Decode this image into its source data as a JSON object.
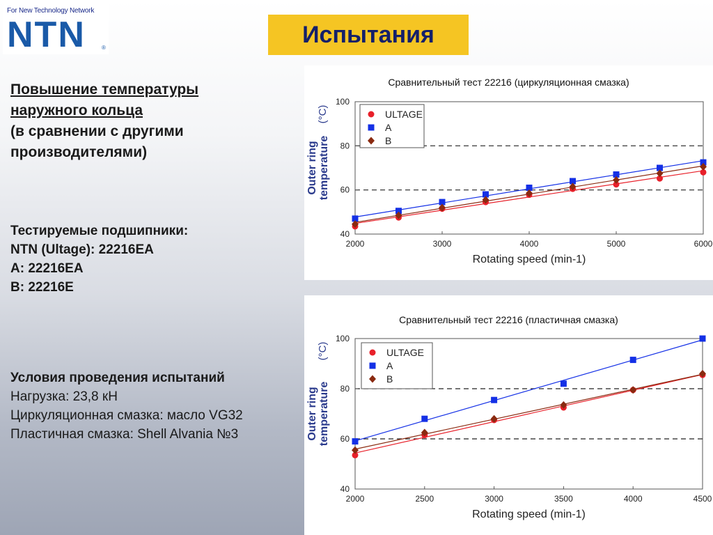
{
  "logo": {
    "tagline": "For New Technology Network",
    "text": "NTN",
    "reg": "®"
  },
  "title": "Испытания",
  "left": {
    "heading_line1": "Повышение температуры",
    "heading_line2": "наружного кольца",
    "heading_line3": "(в сравнении с другими",
    "heading_line4": "производителями)",
    "bearings_title": "Тестируемые подшипники:",
    "bearings_1": "NTN (Ultage): 22216EA",
    "bearings_2": "A: 22216EA",
    "bearings_3": "B: 22216E",
    "conditions_title": "Условия проведения испытаний",
    "conditions_1": "Нагрузка: 23,8 кН",
    "conditions_2": "Циркуляционная смазка: масло VG32",
    "conditions_3": "Пластичная смазка: Shell Alvania №3"
  },
  "chart_data": [
    {
      "type": "scatter",
      "title": "Сравнительный тест 22216 (циркуляционная смазка)",
      "xlabel": "Rotating speed  (min-1)",
      "ylabel_line1": "Outer ring",
      "ylabel_line2": "temperature",
      "ylabel_unit": "(°C)",
      "xlim": [
        2000,
        6000
      ],
      "ylim": [
        40,
        100
      ],
      "xticks": [
        2000,
        3000,
        4000,
        5000,
        6000
      ],
      "yticks": [
        40,
        60,
        80,
        100
      ],
      "dashed_gridlines": [
        60,
        80
      ],
      "legend_position": "top-left",
      "series": [
        {
          "name": "ULTAGE",
          "color": "#e8202a",
          "marker": "circle",
          "x": [
            2000,
            2500,
            3000,
            3500,
            4000,
            4500,
            5000,
            5500,
            6000
          ],
          "y": [
            43.5,
            47.5,
            51.5,
            54.5,
            57.8,
            60.5,
            62.5,
            65.2,
            68
          ]
        },
        {
          "name": "A",
          "color": "#1430e6",
          "marker": "square",
          "x": [
            2000,
            2500,
            3000,
            3500,
            4000,
            4500,
            5000,
            5500,
            6000
          ],
          "y": [
            47,
            50.5,
            54.5,
            58,
            61,
            64,
            67,
            70,
            72.5
          ]
        },
        {
          "name": "B",
          "color": "#8a2a10",
          "marker": "diamond",
          "x": [
            2000,
            2500,
            3000,
            3500,
            4000,
            4500,
            5000,
            5500,
            6000
          ],
          "y": [
            44.5,
            48.5,
            52,
            55.5,
            58.5,
            61.5,
            64.5,
            67.5,
            70.5
          ]
        }
      ]
    },
    {
      "type": "scatter",
      "title": "Сравнительный тест 22216 (пластичная смазка)",
      "xlabel": "Rotating speed  (min-1)",
      "ylabel_line1": "Outer ring",
      "ylabel_line2": "temperature",
      "ylabel_unit": "(°C)",
      "xlim": [
        2000,
        4500
      ],
      "ylim": [
        40,
        100
      ],
      "xticks": [
        2000,
        2500,
        3000,
        3500,
        4000,
        4500
      ],
      "yticks": [
        40,
        60,
        80,
        100
      ],
      "dashed_gridlines": [
        60,
        80
      ],
      "legend_position": "top-left",
      "series": [
        {
          "name": "ULTAGE",
          "color": "#e8202a",
          "marker": "circle",
          "x": [
            2000,
            2500,
            3000,
            3500,
            4000,
            4500
          ],
          "y": [
            53.5,
            61.5,
            67.5,
            72.5,
            79.5,
            85.5
          ]
        },
        {
          "name": "A",
          "color": "#1430e6",
          "marker": "square",
          "x": [
            2000,
            2500,
            3000,
            3500,
            4000,
            4500
          ],
          "y": [
            59,
            68,
            75.5,
            82,
            91.5,
            100
          ]
        },
        {
          "name": "B",
          "color": "#8a2a10",
          "marker": "diamond",
          "x": [
            2000,
            2500,
            3000,
            3500,
            4000,
            4500
          ],
          "y": [
            55.5,
            62.5,
            68,
            73.5,
            79.5,
            86
          ]
        }
      ]
    }
  ]
}
